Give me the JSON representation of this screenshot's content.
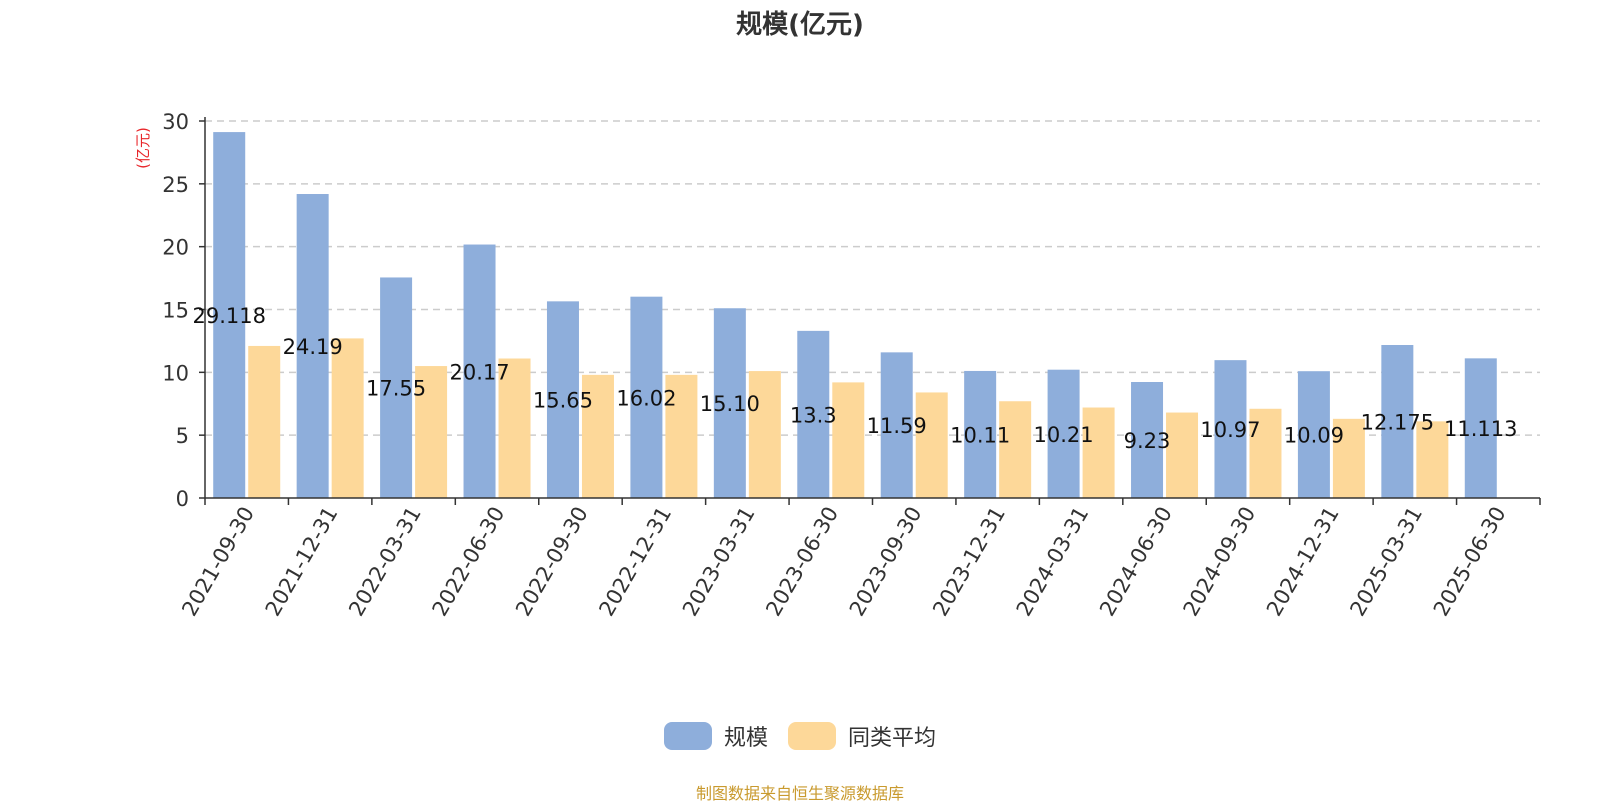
{
  "chart_data": {
    "type": "bar",
    "title": "规模(亿元)",
    "ylabel": "(亿元)",
    "xlabel": "",
    "ylim": [
      0,
      30
    ],
    "yticks": [
      0,
      5,
      10,
      15,
      20,
      25,
      30
    ],
    "grid": true,
    "legend_position": "bottom",
    "categories": [
      "2021-09-30",
      "2021-12-31",
      "2022-03-31",
      "2022-06-30",
      "2022-09-30",
      "2022-12-31",
      "2023-03-31",
      "2023-06-30",
      "2023-09-30",
      "2023-12-31",
      "2024-03-31",
      "2024-06-30",
      "2024-09-30",
      "2024-12-31",
      "2025-03-31",
      "2025-06-30"
    ],
    "series": [
      {
        "name": "规模",
        "color": "#8eaedb",
        "values": [
          29.118,
          24.19,
          17.55,
          20.17,
          15.65,
          16.02,
          15.1,
          13.3,
          11.59,
          10.11,
          10.21,
          9.23,
          10.97,
          10.09,
          12.175,
          11.113
        ],
        "labels": [
          "29.118",
          "24.19",
          "17.55",
          "20.17",
          "15.65",
          "16.02",
          "15.10",
          "13.3",
          "11.59",
          "10.11",
          "10.21",
          "9.23",
          "10.97",
          "10.09",
          "12.175",
          "11.113"
        ]
      },
      {
        "name": "同类平均",
        "color": "#fdd899",
        "values": [
          12.1,
          12.7,
          10.5,
          11.1,
          9.8,
          9.8,
          10.1,
          9.2,
          8.4,
          7.7,
          7.2,
          6.8,
          7.1,
          6.3,
          6.1,
          null
        ]
      }
    ]
  },
  "ylabel_color": "#e8262a",
  "source_note": "制图数据来自恒生聚源数据库",
  "source_note_color": "#c99a2e"
}
